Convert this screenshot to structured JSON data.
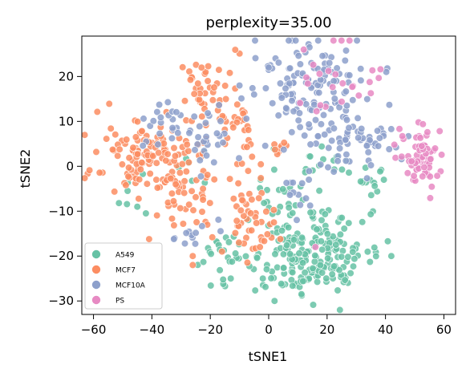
{
  "chart_data": {
    "type": "scatter",
    "title": "perplexity=35.00",
    "xlabel": "tSNE1",
    "ylabel": "tSNE2",
    "xlim": [
      -64,
      64
    ],
    "ylim": [
      -33,
      29
    ],
    "xticks": [
      -60,
      -40,
      -20,
      0,
      20,
      40,
      60
    ],
    "yticks": [
      -30,
      -20,
      -10,
      0,
      10,
      20
    ],
    "xtick_labels": [
      "−60",
      "−40",
      "−20",
      "0",
      "20",
      "40",
      "60"
    ],
    "ytick_labels": [
      "−30",
      "−20",
      "−10",
      "0",
      "10",
      "20"
    ],
    "legend_position": "lower-left",
    "series": [
      {
        "name": "A549",
        "color": "#66c2a5",
        "clusters": [
          {
            "cx": 15,
            "cy": -20,
            "sx": 10,
            "sy": 5,
            "n": 200
          },
          {
            "cx": -15,
            "cy": -20,
            "sx": 5,
            "sy": 3,
            "n": 28
          },
          {
            "cx": 5,
            "cy": -7,
            "sx": 6,
            "sy": 3,
            "n": 20
          },
          {
            "cx": 35,
            "cy": -5,
            "sx": 3,
            "sy": 3,
            "n": 15
          },
          {
            "cx": 18,
            "cy": 0,
            "sx": 5,
            "sy": 2,
            "n": 14
          },
          {
            "cx": -45,
            "cy": -8,
            "sx": 3,
            "sy": 3,
            "n": 6
          },
          {
            "cx": -25,
            "cy": 2,
            "sx": 4,
            "sy": 4,
            "n": 6
          }
        ],
        "points": [
          [
            -13,
            -25
          ],
          [
            -2,
            -25
          ],
          [
            -45,
            -9
          ],
          [
            2,
            -30
          ],
          [
            42,
            -20
          ]
        ]
      },
      {
        "name": "MCF7",
        "color": "#fc8d62",
        "clusters": [
          {
            "cx": -45,
            "cy": 2,
            "sx": 8,
            "sy": 4,
            "n": 110
          },
          {
            "cx": -30,
            "cy": -5,
            "sx": 6,
            "sy": 6,
            "n": 60
          },
          {
            "cx": -20,
            "cy": 17,
            "sx": 5,
            "sy": 4,
            "n": 40
          },
          {
            "cx": -10,
            "cy": 10,
            "sx": 4,
            "sy": 4,
            "n": 28
          },
          {
            "cx": -8,
            "cy": -12,
            "sx": 5,
            "sy": 6,
            "n": 40
          },
          {
            "cx": 0,
            "cy": -15,
            "sx": 3,
            "sy": 3,
            "n": 10
          },
          {
            "cx": 3,
            "cy": 4,
            "sx": 2,
            "sy": 2,
            "n": 8
          }
        ],
        "points": [
          [
            -23,
            22
          ],
          [
            -16,
            -19
          ],
          [
            -26,
            -20
          ],
          [
            -26,
            -22
          ],
          [
            -3,
            -18
          ]
        ]
      },
      {
        "name": "MCF10A",
        "color": "#8da0cb",
        "clusters": [
          {
            "cx": 15,
            "cy": 18,
            "sx": 10,
            "sy": 5,
            "n": 120
          },
          {
            "cx": 25,
            "cy": 5,
            "sx": 10,
            "sy": 4,
            "n": 70
          },
          {
            "cx": -35,
            "cy": 10,
            "sx": 5,
            "sy": 3,
            "n": 25
          },
          {
            "cx": -20,
            "cy": 5,
            "sx": 5,
            "sy": 4,
            "n": 25
          },
          {
            "cx": -25,
            "cy": -15,
            "sx": 4,
            "sy": 2,
            "n": 12
          },
          {
            "cx": 10,
            "cy": -7,
            "sx": 3,
            "sy": 3,
            "n": 12
          }
        ],
        "points": [
          [
            0,
            22
          ],
          [
            -10,
            18
          ],
          [
            -5,
            16
          ]
        ]
      },
      {
        "name": "PS",
        "color": "#e78ac3",
        "clusters": [
          {
            "cx": 52,
            "cy": 2,
            "sx": 3,
            "sy": 3.5,
            "n": 65
          },
          {
            "cx": 20,
            "cy": 18,
            "sx": 6,
            "sy": 5,
            "n": 18
          },
          {
            "cx": 35,
            "cy": 18,
            "sx": 3,
            "sy": 2,
            "n": 6
          }
        ],
        "points": [
          [
            12,
            26
          ],
          [
            16,
            -18
          ]
        ]
      }
    ]
  }
}
